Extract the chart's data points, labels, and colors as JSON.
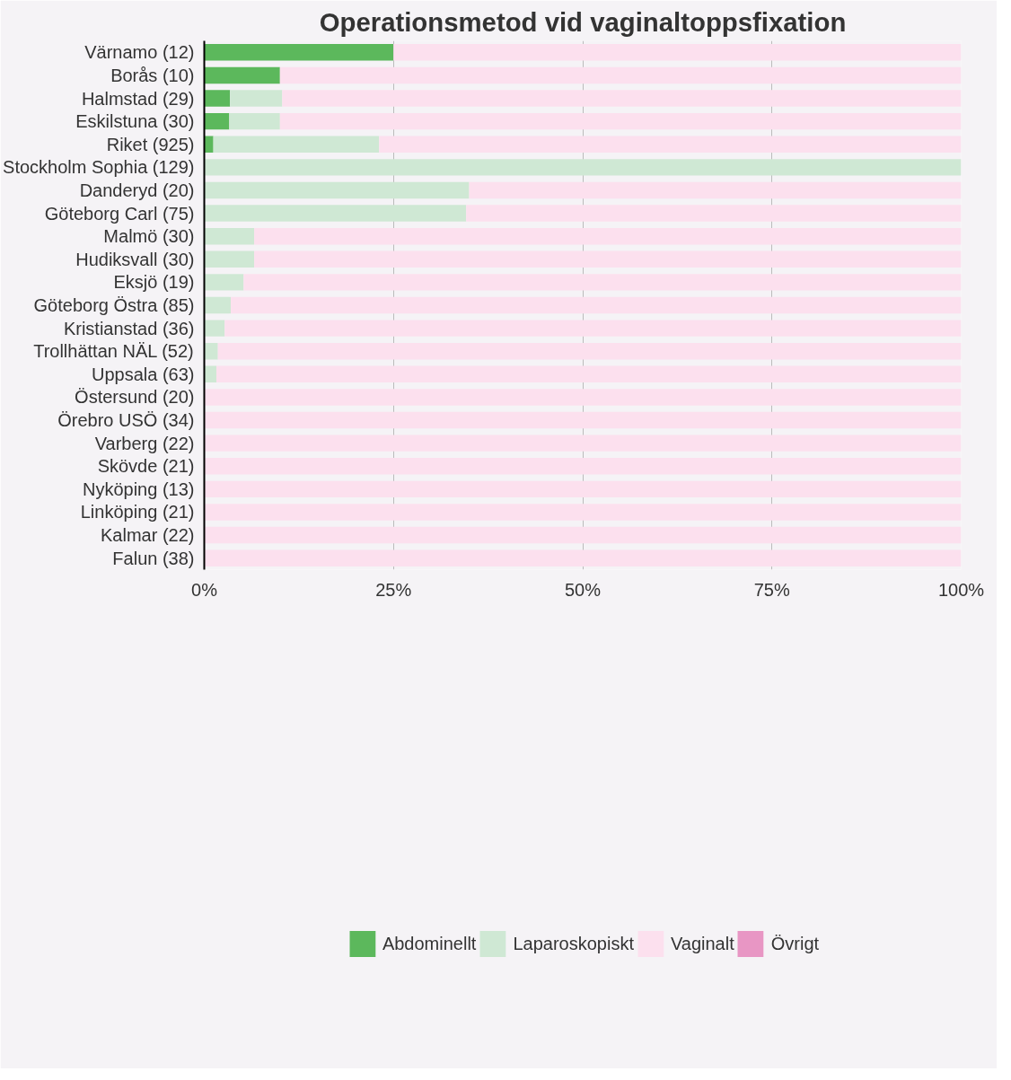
{
  "chart_data": {
    "type": "bar",
    "orientation": "horizontal",
    "stacked": true,
    "title": "Operationsmetod vid vaginaltoppsfixation",
    "categories": [
      "Värnamo (12)",
      "Borås (10)",
      "Halmstad (29)",
      "Eskilstuna (30)",
      "Riket (925)",
      "Stockholm Sophia (129)",
      "Danderyd (20)",
      "Göteborg Carl (75)",
      "Malmö (30)",
      "Hudiksvall (30)",
      "Eksjö (19)",
      "Göteborg Östra (85)",
      "Kristianstad (36)",
      "Trollhättan NÄL (52)",
      "Uppsala (63)",
      "Östersund (20)",
      "Örebro USÖ (34)",
      "Varberg (22)",
      "Skövde (21)",
      "Nyköping (13)",
      "Linköping (21)",
      "Kalmar (22)",
      "Falun (38)"
    ],
    "series": [
      {
        "name": "Abdominellt",
        "color": "#5cb85c",
        "values": [
          25,
          10,
          3.4,
          3.3,
          1.2,
          0,
          0,
          0,
          0,
          0,
          0,
          0,
          0,
          0,
          0,
          0,
          0,
          0,
          0,
          0,
          0,
          0,
          0
        ]
      },
      {
        "name": "Laparoskopiskt",
        "color": "#cfe8d4",
        "values": [
          0,
          0,
          6.9,
          6.7,
          21.9,
          100,
          35,
          34.6,
          6.6,
          6.6,
          5.2,
          3.5,
          2.7,
          1.8,
          1.6,
          0,
          0,
          0,
          0,
          0,
          0,
          0,
          0
        ]
      },
      {
        "name": "Vaginalt",
        "color": "#fce0ee",
        "values": [
          75,
          90,
          89.7,
          90,
          76.9,
          0,
          65,
          65.4,
          93.4,
          93.4,
          94.8,
          96.5,
          97.3,
          98.2,
          98.4,
          100,
          100,
          100,
          100,
          100,
          100,
          100,
          100
        ]
      },
      {
        "name": "Övrigt",
        "color": "#e896c4",
        "values": [
          0,
          0,
          0,
          0,
          0,
          0,
          0,
          0,
          0,
          0,
          0,
          0,
          0,
          0,
          0,
          0,
          0,
          0,
          0,
          0,
          0,
          0,
          0
        ]
      }
    ],
    "xlim": [
      0,
      100
    ],
    "xticks": [
      {
        "value": 0,
        "label": "0%"
      },
      {
        "value": 25,
        "label": "25%"
      },
      {
        "value": 50,
        "label": "50%"
      },
      {
        "value": 75,
        "label": "75%"
      },
      {
        "value": 100,
        "label": "100%"
      }
    ],
    "grid": "x",
    "legend": "bottom"
  }
}
